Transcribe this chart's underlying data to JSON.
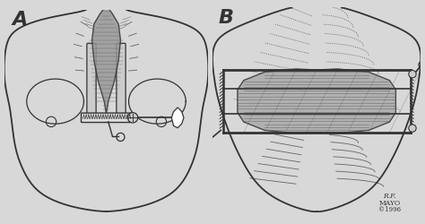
{
  "background_color": "#ffffff",
  "figure_bg": "#d8d8d8",
  "label_A": "A",
  "label_B": "B",
  "watermark_line1": "R.F.",
  "watermark_line2": "MAYO",
  "watermark_line3": "©1996",
  "line_color": "#333333",
  "shade_color": "#b0b0b0",
  "shade_dark": "#888888",
  "fig_width": 4.74,
  "fig_height": 2.51,
  "dpi": 100
}
